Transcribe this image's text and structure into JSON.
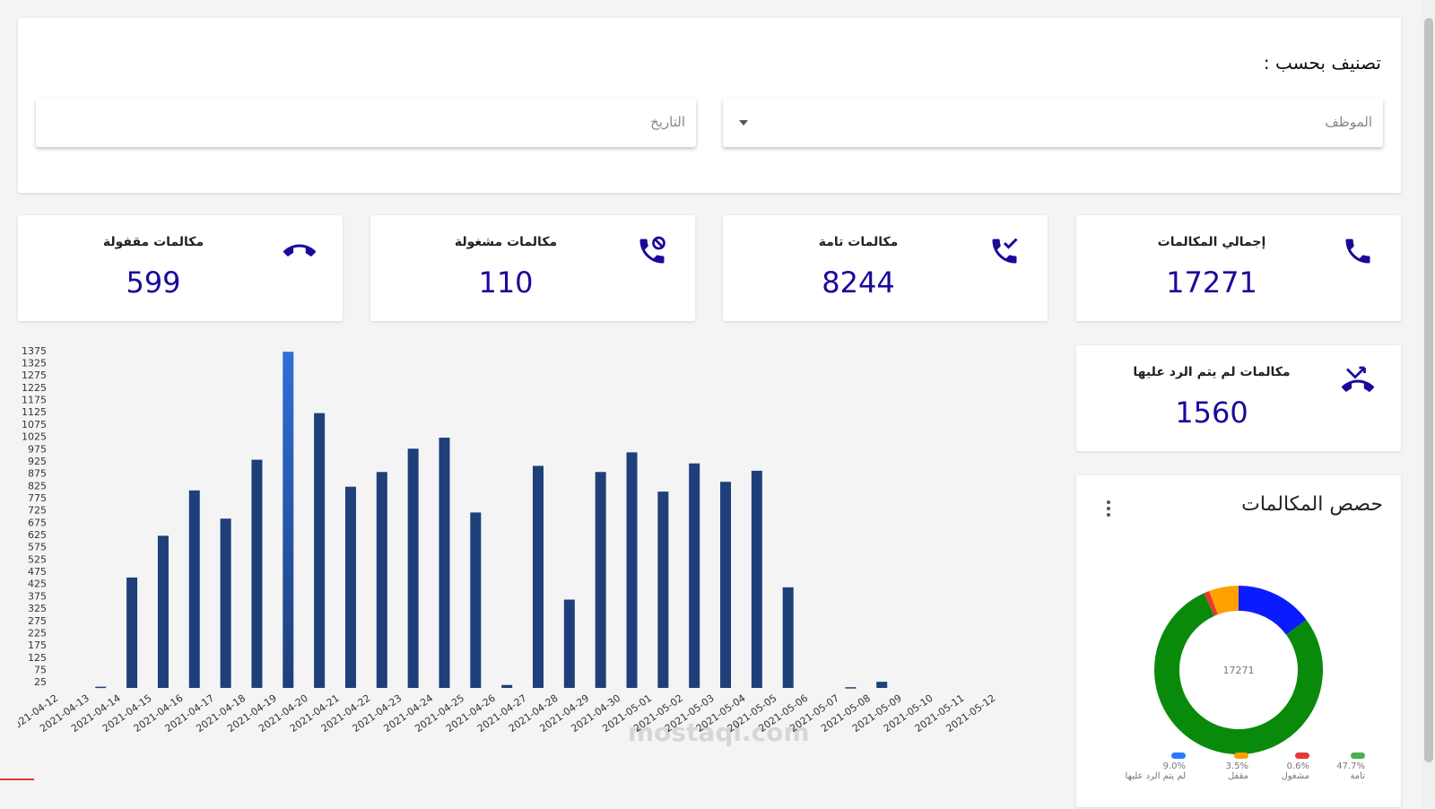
{
  "filter": {
    "title": "تصنيف بحسب :",
    "employee_placeholder": "الموظف",
    "date_placeholder": "التاريخ"
  },
  "stats": [
    {
      "label": "إجمالي المكالمات",
      "value": "17271",
      "icon": "phone-icon"
    },
    {
      "label": "مكالمات تامة",
      "value": "8244",
      "icon": "phone-check-icon"
    },
    {
      "label": "مكالمات مشغولة",
      "value": "110",
      "icon": "phone-busy-icon"
    },
    {
      "label": "مكالمات مقفولة",
      "value": "599",
      "icon": "phone-hangup-icon"
    },
    {
      "label": "مكالمات لم يتم الرد عليها",
      "value": "1560",
      "icon": "phone-missed-icon"
    }
  ],
  "pie": {
    "title": "حصص المكالمات",
    "center": "17271",
    "legend": [
      {
        "pct": "47.7%",
        "name": "تامة",
        "color": "#4caf50"
      },
      {
        "pct": "0.6%",
        "name": "مشغول",
        "color": "#e53935"
      },
      {
        "pct": "3.5%",
        "name": "مقفل",
        "color": "#ffa000"
      },
      {
        "pct": "9.0%",
        "name": "لم يتم الرد عليها",
        "color": "#2979ff"
      }
    ]
  },
  "watermark": "mostaql.com",
  "colors": {
    "accent": "#1a0a9a",
    "bar": "#1e3f7a",
    "bar_peak": "#2f6fd8"
  },
  "chart_data": [
    {
      "type": "bar",
      "categories": [
        "2021-04-12",
        "2021-04-13",
        "2021-04-14",
        "2021-04-15",
        "2021-04-16",
        "2021-04-17",
        "2021-04-18",
        "2021-04-19",
        "2021-04-20",
        "2021-04-21",
        "2021-04-22",
        "2021-04-23",
        "2021-04-24",
        "2021-04-25",
        "2021-04-26",
        "2021-04-27",
        "2021-04-28",
        "2021-04-29",
        "2021-04-30",
        "2021-05-01",
        "2021-05-02",
        "2021-05-03",
        "2021-05-04",
        "2021-05-05",
        "2021-05-06",
        "2021-05-07",
        "2021-05-08",
        "2021-05-09",
        "2021-05-10",
        "2021-05-11",
        "2021-05-12"
      ],
      "values": [
        0,
        5,
        450,
        620,
        805,
        690,
        930,
        1370,
        1120,
        820,
        880,
        975,
        1020,
        715,
        12,
        905,
        360,
        880,
        960,
        800,
        915,
        840,
        885,
        410,
        0,
        3,
        25,
        0,
        0,
        0,
        0
      ],
      "yticks": [
        "25",
        "75",
        "125",
        "175",
        "225",
        "275",
        "325",
        "375",
        "425",
        "475",
        "525",
        "575",
        "625",
        "675",
        "725",
        "775",
        "825",
        "875",
        "925",
        "975",
        "1025",
        "1075",
        "1125",
        "1175",
        "1225",
        "1275",
        "1325",
        "1375"
      ],
      "ylim": [
        0,
        1400
      ]
    },
    {
      "type": "pie",
      "labels": [
        "لم يتم الرد عليها",
        "تامة",
        "مشغول",
        "مقفل"
      ],
      "values": [
        1560,
        8244,
        110,
        599
      ]
    }
  ]
}
